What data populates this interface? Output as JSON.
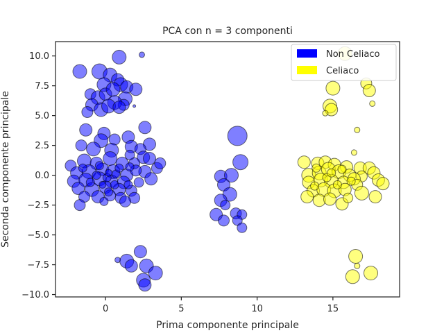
{
  "chart_data": {
    "type": "scatter",
    "title": "PCA con n = 3 componenti",
    "xlabel": "Prima componente principale",
    "ylabel": "Seconda componente principale",
    "xlim": [
      -3.3,
      19.4
    ],
    "ylim": [
      -10.2,
      11.2
    ],
    "xticks": [
      0,
      5,
      10,
      15
    ],
    "yticks": [
      -10.0,
      -7.5,
      -5.0,
      -2.5,
      0.0,
      2.5,
      5.0,
      7.5,
      10.0
    ],
    "grid": false,
    "legend_position": "top-right",
    "colors": {
      "non_celiaco": "#0000ff",
      "celiaco": "#ffff00"
    },
    "series": [
      {
        "name": "Non Celiaco",
        "color": "#0000ff",
        "points": [
          [
            -1.7,
            8.7,
            10
          ],
          [
            -0.4,
            8.7,
            11
          ],
          [
            0.9,
            9.9,
            10
          ],
          [
            2.4,
            10.1,
            4
          ],
          [
            0.3,
            8.4,
            10
          ],
          [
            0.8,
            8.0,
            9
          ],
          [
            -0.1,
            7.6,
            10
          ],
          [
            1.0,
            7.6,
            10
          ],
          [
            1.4,
            7.4,
            9
          ],
          [
            2.0,
            7.2,
            9
          ],
          [
            -1.0,
            6.8,
            8
          ],
          [
            -0.5,
            6.5,
            10
          ],
          [
            0.0,
            6.8,
            9
          ],
          [
            0.5,
            7.2,
            10
          ],
          [
            1.3,
            6.4,
            10
          ],
          [
            1.2,
            5.9,
            8
          ],
          [
            -0.9,
            5.9,
            9
          ],
          [
            0.6,
            6.1,
            10
          ],
          [
            -0.3,
            5.5,
            10
          ],
          [
            0.2,
            5.8,
            10
          ],
          [
            1.9,
            5.8,
            2
          ],
          [
            0.9,
            5.7,
            9
          ],
          [
            -1.2,
            5.3,
            8
          ],
          [
            -1.3,
            3.8,
            9
          ],
          [
            -0.1,
            3.5,
            9
          ],
          [
            -1.6,
            2.5,
            8
          ],
          [
            -0.3,
            2.9,
            10
          ],
          [
            0.6,
            3.0,
            8
          ],
          [
            1.5,
            3.2,
            9
          ],
          [
            2.6,
            4.0,
            9
          ],
          [
            2.9,
            2.6,
            9
          ],
          [
            -0.8,
            2.2,
            10
          ],
          [
            0.4,
            2.1,
            10
          ],
          [
            1.7,
            2.4,
            9
          ],
          [
            2.3,
            2.2,
            8
          ],
          [
            2.5,
            1.5,
            9
          ],
          [
            1.9,
            1.0,
            8
          ],
          [
            -2.3,
            0.8,
            8
          ],
          [
            -1.4,
            1.2,
            10
          ],
          [
            -0.6,
            1.0,
            9
          ],
          [
            0.3,
            1.4,
            10
          ],
          [
            1.1,
            1.0,
            9
          ],
          [
            1.6,
            1.7,
            7
          ],
          [
            2.9,
            1.4,
            9
          ],
          [
            3.4,
            0.6,
            8
          ],
          [
            3.6,
            1.0,
            8
          ],
          [
            2.6,
            0.3,
            9
          ],
          [
            -1.9,
            0.2,
            9
          ],
          [
            -1.1,
            0.3,
            10
          ],
          [
            -0.2,
            0.5,
            9
          ],
          [
            0.5,
            0.3,
            10
          ],
          [
            1.4,
            0.0,
            9
          ],
          [
            2.0,
            0.4,
            8
          ],
          [
            3.0,
            -0.3,
            9
          ],
          [
            -2.1,
            -0.5,
            9
          ],
          [
            -1.3,
            -0.4,
            10
          ],
          [
            -0.4,
            -0.3,
            10
          ],
          [
            0.4,
            -0.5,
            9
          ],
          [
            1.2,
            -0.6,
            9
          ],
          [
            2.2,
            -0.6,
            7
          ],
          [
            -1.8,
            -1.1,
            9
          ],
          [
            -0.9,
            -1.2,
            10
          ],
          [
            0.0,
            -1.0,
            9
          ],
          [
            0.9,
            -1.2,
            9
          ],
          [
            1.7,
            -1.3,
            8
          ],
          [
            -1.4,
            -1.8,
            8
          ],
          [
            -0.5,
            -1.8,
            9
          ],
          [
            0.3,
            -1.7,
            8
          ],
          [
            1.0,
            -1.9,
            8
          ],
          [
            1.9,
            -1.9,
            8
          ],
          [
            -1.7,
            -2.5,
            8
          ],
          [
            -0.1,
            -2.2,
            6
          ],
          [
            1.3,
            -2.2,
            8
          ],
          [
            0.2,
            -1.4,
            6
          ],
          [
            -0.6,
            0.0,
            6
          ],
          [
            0.1,
            -0.2,
            6
          ],
          [
            0.7,
            0.1,
            6
          ],
          [
            -1.0,
            -0.6,
            6
          ],
          [
            0.6,
            -0.8,
            6
          ],
          [
            1.5,
            -0.8,
            6
          ],
          [
            -0.4,
            0.8,
            6
          ],
          [
            0.9,
            0.6,
            6
          ],
          [
            -1.5,
            0.6,
            6
          ],
          [
            0.2,
            0.2,
            5
          ],
          [
            -0.2,
            -0.8,
            5
          ],
          [
            1.6,
            0.7,
            6
          ],
          [
            0.8,
            -7.1,
            4
          ],
          [
            1.4,
            -7.2,
            10
          ],
          [
            1.7,
            -7.6,
            9
          ],
          [
            2.3,
            -6.4,
            9
          ],
          [
            2.7,
            -7.6,
            10
          ],
          [
            3.3,
            -8.2,
            10
          ],
          [
            2.5,
            -8.8,
            10
          ],
          [
            2.6,
            -9.2,
            9
          ],
          [
            7.6,
            -0.1,
            9
          ],
          [
            8.3,
            0.0,
            10
          ],
          [
            7.8,
            -0.8,
            9
          ],
          [
            8.9,
            1.1,
            11
          ],
          [
            8.7,
            3.3,
            14
          ],
          [
            8.2,
            -1.6,
            10
          ],
          [
            7.6,
            -2.1,
            9
          ],
          [
            7.9,
            -2.5,
            7
          ],
          [
            7.3,
            -3.3,
            9
          ],
          [
            7.8,
            -3.8,
            8
          ],
          [
            8.6,
            -3.2,
            8
          ],
          [
            9.0,
            -3.3,
            7
          ],
          [
            8.7,
            -3.8,
            7
          ],
          [
            9.0,
            -4.4,
            7
          ]
        ]
      },
      {
        "name": "Celiaco",
        "color": "#ffff00",
        "points": [
          [
            15.8,
            10.2,
            10
          ],
          [
            15.0,
            7.3,
            10
          ],
          [
            17.2,
            7.7,
            8
          ],
          [
            17.4,
            7.1,
            9
          ],
          [
            14.8,
            5.8,
            10
          ],
          [
            14.9,
            5.5,
            9
          ],
          [
            14.5,
            5.2,
            4
          ],
          [
            17.6,
            6.0,
            4
          ],
          [
            16.6,
            3.8,
            4
          ],
          [
            16.4,
            1.9,
            4
          ],
          [
            13.1,
            1.1,
            9
          ],
          [
            14.0,
            1.0,
            9
          ],
          [
            14.5,
            1.1,
            9
          ],
          [
            15.1,
            0.9,
            9
          ],
          [
            15.9,
            0.7,
            9
          ],
          [
            16.8,
            0.6,
            9
          ],
          [
            17.4,
            0.6,
            9
          ],
          [
            17.7,
            0.2,
            9
          ],
          [
            13.4,
            0.0,
            10
          ],
          [
            14.1,
            0.2,
            10
          ],
          [
            14.7,
            0.5,
            10
          ],
          [
            15.4,
            0.3,
            10
          ],
          [
            16.1,
            0.0,
            9
          ],
          [
            16.9,
            -0.1,
            8
          ],
          [
            18.0,
            -0.4,
            9
          ],
          [
            18.3,
            -0.7,
            9
          ],
          [
            13.4,
            -0.6,
            9
          ],
          [
            14.2,
            -0.4,
            10
          ],
          [
            14.9,
            -0.5,
            10
          ],
          [
            15.7,
            -0.6,
            9
          ],
          [
            16.4,
            -0.3,
            9
          ],
          [
            16.6,
            -0.8,
            8
          ],
          [
            13.7,
            -1.3,
            9
          ],
          [
            14.4,
            -1.2,
            10
          ],
          [
            15.1,
            -1.3,
            10
          ],
          [
            15.8,
            -1.2,
            9
          ],
          [
            16.9,
            -1.5,
            10
          ],
          [
            17.8,
            -1.8,
            9
          ],
          [
            13.3,
            -1.8,
            9
          ],
          [
            14.1,
            -2.1,
            9
          ],
          [
            14.8,
            -2.0,
            9
          ],
          [
            15.6,
            -2.4,
            9
          ],
          [
            16.0,
            -1.9,
            7
          ],
          [
            13.8,
            -0.9,
            6
          ],
          [
            14.6,
            -0.2,
            6
          ],
          [
            15.3,
            -0.8,
            6
          ],
          [
            16.2,
            -0.5,
            6
          ],
          [
            14.9,
            0.2,
            6
          ],
          [
            13.9,
            0.6,
            6
          ],
          [
            15.6,
            0.5,
            6
          ],
          [
            16.6,
            -7.6,
            4
          ],
          [
            16.5,
            -6.8,
            10
          ],
          [
            16.3,
            -8.5,
            10
          ],
          [
            17.5,
            -8.2,
            10
          ]
        ]
      }
    ]
  }
}
